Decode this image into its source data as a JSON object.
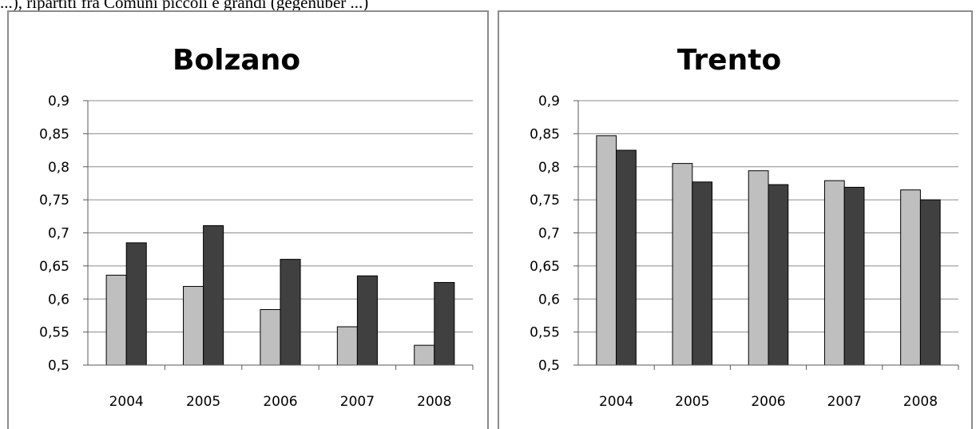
{
  "caption": "...), ripartiti fra Comuni piccoli e grandi (gegenüber ...)",
  "colors": {
    "series_light": "#bfbfbf",
    "series_dark": "#404040",
    "grid": "#8c8c8c",
    "axis": "#595959"
  },
  "chart_data": [
    {
      "type": "bar",
      "title": "Bolzano",
      "xlabel": "",
      "ylabel": "",
      "categories": [
        "2004",
        "2005",
        "2006",
        "2007",
        "2008"
      ],
      "ylim": [
        0.5,
        0.9
      ],
      "yticks": [
        "0,5",
        "0,55",
        "0,6",
        "0,65",
        "0,7",
        "0,75",
        "0,8",
        "0,85",
        "0,9"
      ],
      "grid": true,
      "legend": "none",
      "series": [
        {
          "values": [
            0.636,
            0.619,
            0.584,
            0.558,
            0.53
          ]
        },
        {
          "values": [
            0.685,
            0.711,
            0.66,
            0.635,
            0.625
          ]
        }
      ]
    },
    {
      "type": "bar",
      "title": "Trento",
      "xlabel": "",
      "ylabel": "",
      "categories": [
        "2004",
        "2005",
        "2006",
        "2007",
        "2008"
      ],
      "ylim": [
        0.5,
        0.9
      ],
      "yticks": [
        "0,5",
        "0,55",
        "0,6",
        "0,65",
        "0,7",
        "0,75",
        "0,8",
        "0,85",
        "0,9"
      ],
      "grid": true,
      "legend": "none",
      "series": [
        {
          "values": [
            0.847,
            0.805,
            0.794,
            0.779,
            0.765
          ]
        },
        {
          "values": [
            0.825,
            0.777,
            0.773,
            0.769,
            0.75
          ]
        }
      ]
    }
  ]
}
